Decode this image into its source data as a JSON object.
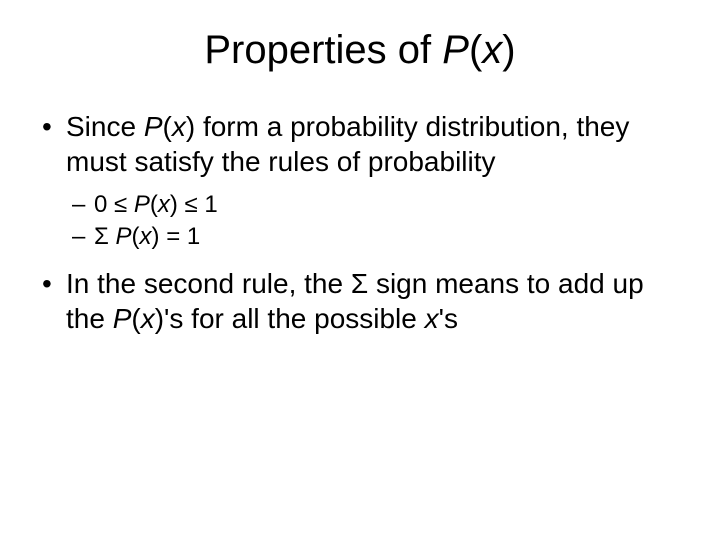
{
  "title": {
    "prefix": "Properties of ",
    "P": "P",
    "open": "(",
    "x": "x",
    "close": ")"
  },
  "bullets": [
    {
      "segments": [
        {
          "text": "Since ",
          "italic": false
        },
        {
          "text": "P",
          "italic": true
        },
        {
          "text": "(",
          "italic": false
        },
        {
          "text": "x",
          "italic": true
        },
        {
          "text": ") form a probability distribution, they must satisfy the rules of probability",
          "italic": false
        }
      ]
    },
    {
      "segments": [
        {
          "text": "In the second rule, the Σ sign means to add up the ",
          "italic": false
        },
        {
          "text": "P",
          "italic": true
        },
        {
          "text": "(",
          "italic": false
        },
        {
          "text": "x",
          "italic": true
        },
        {
          "text": ")'s for all the possible ",
          "italic": false
        },
        {
          "text": "x",
          "italic": true
        },
        {
          "text": "'s",
          "italic": false
        }
      ]
    }
  ],
  "subbullets": [
    {
      "segments": [
        {
          "text": "0 ≤ ",
          "italic": false
        },
        {
          "text": "P",
          "italic": true
        },
        {
          "text": "(",
          "italic": false
        },
        {
          "text": "x",
          "italic": true
        },
        {
          "text": ") ≤ 1",
          "italic": false
        }
      ]
    },
    {
      "segments": [
        {
          "text": "Σ ",
          "italic": false
        },
        {
          "text": "P",
          "italic": true
        },
        {
          "text": "(",
          "italic": false
        },
        {
          "text": "x",
          "italic": true
        },
        {
          "text": ") = 1",
          "italic": false
        }
      ]
    }
  ],
  "colors": {
    "background": "#ffffff",
    "text": "#000000"
  },
  "typography": {
    "title_fontsize": 40,
    "bullet_fontsize": 28,
    "subbullet_fontsize": 24,
    "font_family": "Arial"
  }
}
